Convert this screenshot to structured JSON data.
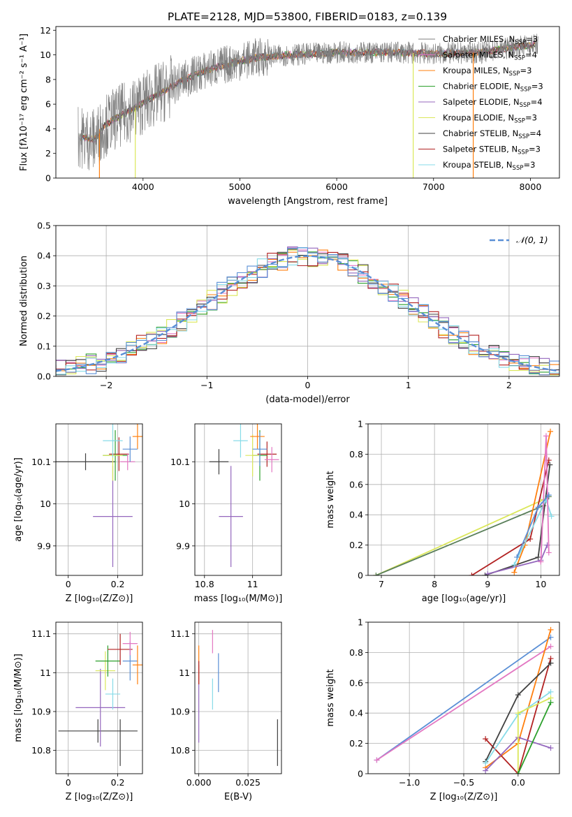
{
  "title": "PLATE=2128, MJD=53800, FIBERID=0183, z=0.139",
  "colors": {
    "Chabrier MILES": "#7f7f7f",
    "Salpeter MILES": "#e377c2",
    "Kroupa MILES": "#ff7f0e",
    "Chabrier ELODIE": "#2ca02c",
    "Salpeter ELODIE": "#9467bd",
    "Kroupa ELODIE": "#dbe75a",
    "Chabrier STELIB": "#404040",
    "Salpeter STELIB": "#b22222",
    "Kroupa STELIB": "#87dbe8",
    "blue": "#5a8fd6",
    "green_dark": "#5a7f5a"
  },
  "chart_data": [
    {
      "id": "spectrum",
      "type": "line",
      "xlabel": "wavelength [Angstrom, rest frame]",
      "ylabel": "Flux [fλ10⁻¹⁷ erg cm⁻² s⁻¹ A⁻¹]",
      "xlim": [
        3100,
        8300
      ],
      "ylim": [
        0,
        12.3
      ],
      "xticks": [
        4000,
        5000,
        6000,
        7000,
        8000
      ],
      "yticks": [
        0,
        2,
        4,
        6,
        8,
        10,
        12
      ],
      "legend_position": "top-right",
      "legend": [
        {
          "label": "Chabrier MILES, N",
          "sub": "SSP",
          "suffix": "=3"
        },
        {
          "label": "Salpeter MILES, N",
          "sub": "SSP",
          "suffix": "=4"
        },
        {
          "label": "Kroupa MILES, N",
          "sub": "SSP",
          "suffix": "=3"
        },
        {
          "label": "Chabrier ELODIE, N",
          "sub": "SSP",
          "suffix": "=3"
        },
        {
          "label": "Salpeter ELODIE, N",
          "sub": "SSP",
          "suffix": "=4"
        },
        {
          "label": "Kroupa ELODIE, N",
          "sub": "SSP",
          "suffix": "=3"
        },
        {
          "label": "Chabrier STELIB, N",
          "sub": "SSP",
          "suffix": "=4"
        },
        {
          "label": "Salpeter STELIB, N",
          "sub": "SSP",
          "suffix": "=3"
        },
        {
          "label": "Kroupa STELIB, N",
          "sub": "SSP",
          "suffix": "=3"
        }
      ],
      "continuum": [
        [
          3300,
          3.4
        ],
        [
          3500,
          3.1
        ],
        [
          3600,
          4.2
        ],
        [
          3700,
          4.8
        ],
        [
          3800,
          5.2
        ],
        [
          3900,
          5.6
        ],
        [
          4000,
          6.1
        ],
        [
          4200,
          7.0
        ],
        [
          4400,
          7.9
        ],
        [
          4600,
          8.6
        ],
        [
          4800,
          9.1
        ],
        [
          5000,
          9.5
        ],
        [
          5200,
          9.8
        ],
        [
          5500,
          10.0
        ],
        [
          5800,
          10.1
        ],
        [
          6000,
          10.2
        ],
        [
          6300,
          10.2
        ],
        [
          6600,
          10.2
        ],
        [
          7000,
          10.1
        ],
        [
          7500,
          10.2
        ],
        [
          7800,
          10.6
        ],
        [
          8100,
          10.9
        ]
      ]
    },
    {
      "id": "residuals",
      "type": "histogram",
      "xlabel": "(data-model)/error",
      "ylabel": "Normed distribution",
      "xlim": [
        -2.5,
        2.5
      ],
      "ylim": [
        0,
        0.5
      ],
      "xticks": [
        -2,
        -1,
        0,
        1,
        2
      ],
      "yticks": [
        0.0,
        0.1,
        0.2,
        0.3,
        0.4,
        0.5
      ],
      "grid": true,
      "legend_label": "𝒩(0, 1)",
      "legend_position": "top-right",
      "bin_width": 0.1
    },
    {
      "id": "age_vs_Z",
      "type": "errorbar",
      "xlabel": "Z [log₁₀(Z/Z⊙)]",
      "ylabel": "age  [log₁₀(age/yr)]",
      "xlim": [
        -0.05,
        0.3
      ],
      "ylim": [
        9.83,
        10.19
      ],
      "xticks": [
        0.0,
        0.2
      ],
      "yticks": [
        9.9,
        10.0,
        10.1
      ],
      "points": [
        {
          "s": "Chabrier STELIB",
          "x": 0.07,
          "y": 10.1,
          "xe": 0.12,
          "ye": 0.02
        },
        {
          "s": "Salpeter ELODIE",
          "x": 0.18,
          "y": 9.97,
          "xe": 0.08,
          "ye": 0.12
        },
        {
          "s": "Salpeter STELIB",
          "x": 0.205,
          "y": 10.118,
          "xe": 0.04,
          "ye": 0.04
        },
        {
          "s": "Chabrier ELODIE",
          "x": 0.19,
          "y": 10.115,
          "xe": 0.05,
          "ye": 0.06
        },
        {
          "s": "Kroupa ELODIE",
          "x": 0.18,
          "y": 10.115,
          "xe": 0.04,
          "ye": 0.06
        },
        {
          "s": "Kroupa STELIB",
          "x": 0.18,
          "y": 10.15,
          "xe": 0.04,
          "ye": 0.04
        },
        {
          "s": "Kroupa MILES",
          "x": 0.28,
          "y": 10.16,
          "xe": 0.02,
          "ye": 0.03
        },
        {
          "s": "Salpeter MILES",
          "x": 0.24,
          "y": 10.1,
          "xe": 0.03,
          "ye": 0.02
        },
        {
          "s": "blue",
          "x": 0.25,
          "y": 10.13,
          "xe": 0.03,
          "ye": 0.03
        }
      ]
    },
    {
      "id": "age_vs_mass",
      "type": "errorbar",
      "xlabel": "mass [log₁₀(M/M⊙)]",
      "ylabel": "",
      "xlim": [
        10.76,
        11.12
      ],
      "ylim": [
        9.83,
        10.19
      ],
      "xticks": [
        10.8,
        11.0
      ],
      "yticks": [
        9.9,
        10.0,
        10.1
      ],
      "points": [
        {
          "s": "Chabrier STELIB",
          "x": 10.86,
          "y": 10.1,
          "xe": 0.04,
          "ye": 0.03
        },
        {
          "s": "Salpeter ELODIE",
          "x": 10.91,
          "y": 9.97,
          "xe": 0.05,
          "ye": 0.12
        },
        {
          "s": "Salpeter STELIB",
          "x": 11.06,
          "y": 10.118,
          "xe": 0.04,
          "ye": 0.03
        },
        {
          "s": "Chabrier ELODIE",
          "x": 11.03,
          "y": 10.115,
          "xe": 0.03,
          "ye": 0.06
        },
        {
          "s": "Kroupa ELODIE",
          "x": 11.0,
          "y": 10.115,
          "xe": 0.03,
          "ye": 0.05
        },
        {
          "s": "Kroupa STELIB",
          "x": 10.95,
          "y": 10.15,
          "xe": 0.03,
          "ye": 0.04
        },
        {
          "s": "Kroupa MILES",
          "x": 11.02,
          "y": 10.16,
          "xe": 0.03,
          "ye": 0.03
        },
        {
          "s": "Salpeter MILES",
          "x": 11.08,
          "y": 10.105,
          "xe": 0.03,
          "ye": 0.03
        },
        {
          "s": "blue",
          "x": 11.03,
          "y": 10.13,
          "xe": 0.03,
          "ye": 0.04
        }
      ]
    },
    {
      "id": "massweight_vs_age",
      "type": "line",
      "xlabel": "age  [log₁₀(age/yr)]",
      "ylabel": "mass weight",
      "xlim": [
        6.75,
        10.35
      ],
      "ylim": [
        0.0,
        1.0
      ],
      "xticks": [
        7,
        8,
        9,
        10
      ],
      "yticks": [
        0.0,
        0.2,
        0.4,
        0.6,
        0.8,
        1.0
      ],
      "series": [
        {
          "s": "Kroupa ELODIE",
          "x": [
            6.9,
            10.05,
            10.15
          ],
          "y": [
            0.0,
            0.5,
            0.52
          ]
        },
        {
          "s": "green_dark",
          "x": [
            6.9,
            10.05,
            10.15
          ],
          "y": [
            0.0,
            0.46,
            0.52
          ]
        },
        {
          "s": "Kroupa MILES",
          "x": [
            9.5,
            9.7,
            10.18
          ],
          "y": [
            0.02,
            0.2,
            0.95
          ]
        },
        {
          "s": "Salpeter STELIB",
          "x": [
            8.7,
            9.8,
            10.15
          ],
          "y": [
            0.0,
            0.24,
            0.76
          ]
        },
        {
          "s": "Chabrier STELIB",
          "x": [
            8.95,
            9.95,
            10.17
          ],
          "y": [
            0.0,
            0.12,
            0.73
          ]
        },
        {
          "s": "Salpeter ELODIE",
          "x": [
            9.0,
            10.0,
            10.12
          ],
          "y": [
            0.01,
            0.1,
            0.2
          ]
        },
        {
          "s": "Kroupa STELIB",
          "x": [
            9.5,
            10.1,
            10.2
          ],
          "y": [
            0.07,
            0.5,
            0.39
          ]
        },
        {
          "s": "Salpeter MILES",
          "x": [
            10.0,
            10.1,
            10.15
          ],
          "y": [
            0.09,
            0.92,
            0.15
          ]
        },
        {
          "s": "blue",
          "x": [
            9.55,
            9.95,
            10.15
          ],
          "y": [
            0.12,
            0.45,
            0.53
          ]
        }
      ]
    },
    {
      "id": "mass_vs_Z",
      "type": "errorbar",
      "xlabel": "Z [log₁₀(Z/Z⊙)]",
      "ylabel": "mass [log₁₀(M/M⊙)]",
      "xlim": [
        -0.05,
        0.3
      ],
      "ylim": [
        10.74,
        11.13
      ],
      "xticks": [
        0.0,
        0.2
      ],
      "yticks": [
        10.8,
        10.9,
        11.0,
        11.1
      ],
      "points": [
        {
          "s": "Chabrier STELIB",
          "x": 0.12,
          "y": 10.85,
          "xe": 0.16,
          "ye": 0.03
        },
        {
          "s": "Chabrier STELIB",
          "x": 0.21,
          "y": 10.82,
          "xe": 0.0,
          "ye": 0.06
        },
        {
          "s": "Salpeter ELODIE",
          "x": 0.13,
          "y": 10.91,
          "xe": 0.1,
          "ye": 0.1
        },
        {
          "s": "Kroupa STELIB",
          "x": 0.18,
          "y": 10.945,
          "xe": 0.03,
          "ye": 0.04
        },
        {
          "s": "Kroupa ELODIE",
          "x": 0.15,
          "y": 11.005,
          "xe": 0.04,
          "ye": 0.05
        },
        {
          "s": "Chabrier ELODIE",
          "x": 0.16,
          "y": 11.03,
          "xe": 0.05,
          "ye": 0.04
        },
        {
          "s": "Salpeter STELIB",
          "x": 0.21,
          "y": 11.06,
          "xe": 0.05,
          "ye": 0.04
        },
        {
          "s": "blue",
          "x": 0.25,
          "y": 11.03,
          "xe": 0.03,
          "ye": 0.05
        },
        {
          "s": "Kroupa MILES",
          "x": 0.28,
          "y": 11.02,
          "xe": 0.02,
          "ye": 0.05
        },
        {
          "s": "Salpeter MILES",
          "x": 0.25,
          "y": 11.075,
          "xe": 0.03,
          "ye": 0.03
        }
      ]
    },
    {
      "id": "mass_vs_ebv",
      "type": "errorbar",
      "xlabel": "E(B-V)",
      "ylabel": "",
      "xlim": [
        -0.002,
        0.042
      ],
      "ylim": [
        10.74,
        11.13
      ],
      "xticks": [
        0.0,
        0.025
      ],
      "xticklabels": [
        "0.000",
        "0.025"
      ],
      "yticks": [
        10.8,
        10.9,
        11.0,
        11.1
      ],
      "points": [
        {
          "s": "Salpeter ELODIE",
          "x": 0.0,
          "y": 10.92,
          "xe": 0.0,
          "ye": 0.1
        },
        {
          "s": "Kroupa MILES",
          "x": 0.0,
          "y": 11.02,
          "xe": 0.0,
          "ye": 0.05
        },
        {
          "s": "Salpeter STELIB",
          "x": 0.0,
          "y": 11.0,
          "xe": 0.0,
          "ye": 0.03
        },
        {
          "s": "Salpeter MILES",
          "x": 0.007,
          "y": 11.08,
          "xe": 0.0,
          "ye": 0.03
        },
        {
          "s": "Kroupa STELIB",
          "x": 0.007,
          "y": 10.945,
          "xe": 0.0,
          "ye": 0.04
        },
        {
          "s": "blue",
          "x": 0.01,
          "y": 11.0,
          "xe": 0.0,
          "ye": 0.05
        },
        {
          "s": "Chabrier STELIB",
          "x": 0.04,
          "y": 10.82,
          "xe": 0.0,
          "ye": 0.06
        }
      ]
    },
    {
      "id": "massweight_vs_Z",
      "type": "line",
      "xlabel": "Z [log₁₀(Z/Z⊙)]",
      "ylabel": "mass weight",
      "xlim": [
        -1.38,
        0.38
      ],
      "ylim": [
        0.0,
        1.0
      ],
      "xticks": [
        -1.0,
        -0.5,
        0.0
      ],
      "xticklabels": [
        "−1.0",
        "−0.5",
        "0.0"
      ],
      "yticks": [
        0.0,
        0.2,
        0.4,
        0.6,
        0.8,
        1.0
      ],
      "series": [
        {
          "s": "blue",
          "x": [
            -1.3,
            0.3
          ],
          "y": [
            0.09,
            0.9
          ]
        },
        {
          "s": "Salpeter MILES",
          "x": [
            -1.3,
            0.3
          ],
          "y": [
            0.09,
            0.84
          ]
        },
        {
          "s": "Kroupa MILES",
          "x": [
            -0.3,
            0.0,
            0.3
          ],
          "y": [
            0.04,
            0.2,
            0.95
          ]
        },
        {
          "s": "Salpeter STELIB",
          "x": [
            -0.3,
            0.0,
            0.3
          ],
          "y": [
            0.23,
            0.0,
            0.76
          ]
        },
        {
          "s": "Chabrier STELIB",
          "x": [
            -0.3,
            0.0,
            0.3
          ],
          "y": [
            0.08,
            0.52,
            0.73
          ]
        },
        {
          "s": "Salpeter ELODIE",
          "x": [
            -0.3,
            0.0,
            0.3
          ],
          "y": [
            0.02,
            0.24,
            0.17
          ]
        },
        {
          "s": "Kroupa STELIB",
          "x": [
            -0.3,
            0.0,
            0.3
          ],
          "y": [
            0.07,
            0.39,
            0.54
          ]
        },
        {
          "s": "Kroupa ELODIE",
          "x": [
            0.0,
            0.0,
            0.3
          ],
          "y": [
            0.0,
            0.4,
            0.5
          ]
        },
        {
          "s": "Chabrier ELODIE",
          "x": [
            0.0,
            0.3
          ],
          "y": [
            0.0,
            0.47
          ]
        }
      ]
    }
  ]
}
